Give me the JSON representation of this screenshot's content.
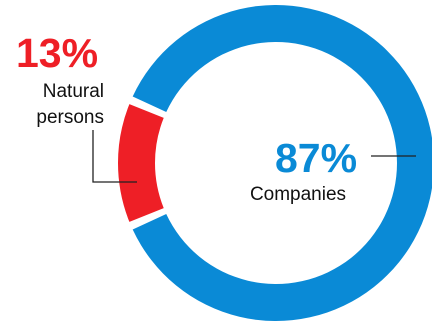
{
  "chart_data": {
    "type": "pie",
    "variant": "donut",
    "title": "",
    "slices": [
      {
        "label_lines": [
          "Companies"
        ],
        "value": 87,
        "value_label": "87%",
        "color": "#0a8ad6"
      },
      {
        "label_lines": [
          "Natural",
          "persons"
        ],
        "value": 13,
        "value_label": "13%",
        "color": "#ee1f26"
      }
    ],
    "colors": {
      "leader_line": "#222222",
      "label_text": "#111111",
      "separator": "#ffffff"
    }
  }
}
